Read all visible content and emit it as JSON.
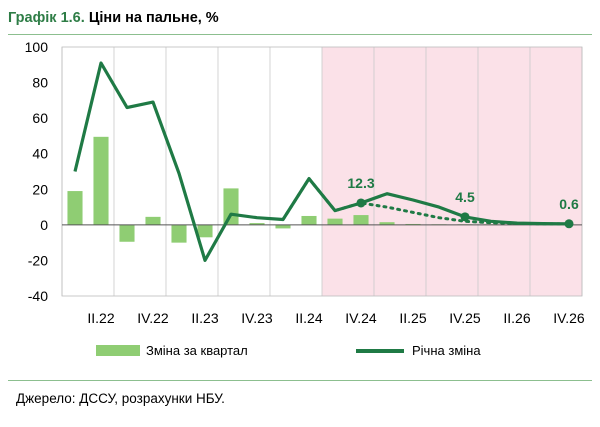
{
  "title": {
    "prefix": "Графік 1.6.",
    "text": "Ціни на пальне, %"
  },
  "legend": {
    "bar_label": "Зміна за квартал",
    "line_label": "Річна зміна"
  },
  "source": "Джерело: ДССУ, розрахунки НБУ.",
  "colors": {
    "bar": "#8fcd73",
    "line": "#1f7a45",
    "forecast_shade": "#fbe1e8",
    "title_number": "#2e7d46",
    "rule": "#8cbf8f"
  },
  "chart_data": {
    "type": "bar+line",
    "x": [
      "I.22",
      "II.22",
      "III.22",
      "IV.22",
      "I.23",
      "II.23",
      "III.23",
      "IV.23",
      "I.24",
      "II.24",
      "III.24",
      "IV.24",
      "I.25",
      "II.25",
      "III.25",
      "IV.25",
      "I.26",
      "II.26",
      "III.26",
      "IV.26"
    ],
    "tick_labels": [
      "II.22",
      "IV.22",
      "II.23",
      "IV.23",
      "II.24",
      "IV.24",
      "II.25",
      "IV.25",
      "II.26",
      "IV.26"
    ],
    "ylim": [
      -40,
      100
    ],
    "yticks": [
      -40,
      -20,
      0,
      20,
      40,
      60,
      80,
      100
    ],
    "forecast_shading_from": "III.24",
    "grid": "vertical",
    "series": [
      {
        "name": "Зміна за квартал",
        "type": "bar",
        "values": [
          19,
          49.5,
          -9.5,
          4.5,
          -10,
          -7,
          20.5,
          1,
          -2,
          5,
          3.5,
          5.5,
          1.5,
          0.5,
          0.3,
          0.3,
          0.3,
          0.2,
          0.2,
          0.2
        ]
      },
      {
        "name": "Річна зміна",
        "type": "line",
        "values": [
          30,
          91,
          66,
          69,
          29,
          -20,
          6,
          4,
          3,
          26,
          8,
          12.3,
          17.5,
          14,
          10,
          4.5,
          2,
          1,
          0.7,
          0.6
        ],
        "markers": {
          "IV.24": 12.3,
          "IV.25": 4.5,
          "IV.26": 0.6
        }
      },
      {
        "type": "line",
        "style": "dotted",
        "values": [
          null,
          null,
          null,
          null,
          null,
          null,
          null,
          null,
          3,
          26,
          8,
          12.3,
          10,
          7,
          4,
          2,
          1.2,
          0.8,
          0.6,
          0.5
        ]
      }
    ],
    "annotations": [
      {
        "x": "IV.24",
        "text": "12.3"
      },
      {
        "x": "IV.25",
        "text": "4.5"
      },
      {
        "x": "IV.26",
        "text": "0.6"
      }
    ]
  }
}
